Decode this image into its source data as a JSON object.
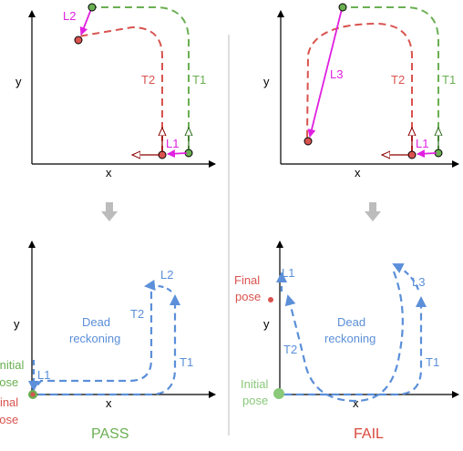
{
  "colors": {
    "green": "#6aaf52",
    "red": "#d9534f",
    "magenta": "#e020e0",
    "blue": "#5b8fd9",
    "gray": "#bcbcbc",
    "arrow_red": "#8b0000",
    "arrow_green": "#2e6b1f",
    "pass": "#6aaf52",
    "fail": "#d9483a"
  },
  "top_left": {
    "axis_x": "x",
    "axis_y": "y",
    "label_l2": "L2",
    "label_t2": "T2",
    "label_t1": "T1",
    "label_l1": "L1"
  },
  "top_right": {
    "axis_x": "x",
    "axis_y": "y",
    "label_l3": "L3",
    "label_t2": "T2",
    "label_t1": "T1",
    "label_l1": "L1"
  },
  "bottom_left": {
    "axis_x": "x",
    "axis_y": "y",
    "label_l2": "L2",
    "label_t2": "T2",
    "label_t1": "T1",
    "label_l1": "L1",
    "dead_line1": "Dead",
    "dead_line2": "reckoning",
    "initial_line1": "Initial",
    "initial_line2": "pose",
    "final_line1": "Final",
    "final_line2": "pose",
    "verdict": "PASS"
  },
  "bottom_right": {
    "axis_x": "x",
    "axis_y": "y",
    "label_l3": "L3",
    "label_t2": "T2",
    "label_t1": "T1",
    "label_l1": "L1",
    "dead_line1": "Dead",
    "dead_line2": "reckoning",
    "initial_line1": "Initial",
    "initial_line2": "pose",
    "final_line1": "Final",
    "final_line2": "pose",
    "verdict": "FAIL"
  }
}
